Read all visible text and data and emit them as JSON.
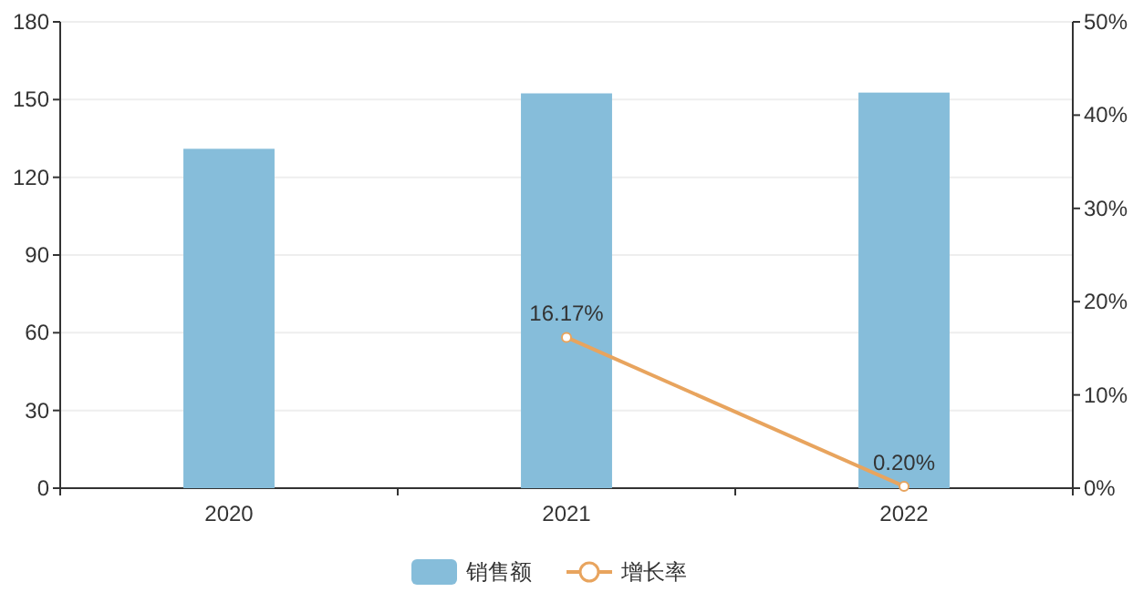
{
  "chart_data": {
    "type": "bar",
    "categories": [
      "2020",
      "2021",
      "2022"
    ],
    "series": [
      {
        "name": "销售额",
        "color": "#86bdda",
        "values": [
          131,
          152.4,
          152.7
        ]
      },
      {
        "name": "增长率",
        "type": "line",
        "axis": "y2",
        "color": "#e8a45e",
        "values": [
          null,
          16.17,
          0.2
        ],
        "value_labels": [
          null,
          "16.17%",
          "0.20%"
        ],
        "marker": "circle"
      }
    ],
    "ylim": [
      0,
      180
    ],
    "yticks": [
      0,
      30,
      60,
      90,
      120,
      150,
      180
    ],
    "y2lim": [
      0,
      50
    ],
    "y2ticks": [
      {
        "value": 0,
        "label": "0%"
      },
      {
        "value": 10,
        "label": "10%"
      },
      {
        "value": 20,
        "label": "20%"
      },
      {
        "value": 30,
        "label": "30%"
      },
      {
        "value": 40,
        "label": "40%"
      },
      {
        "value": 50,
        "label": "50%"
      }
    ],
    "grid": "y",
    "legend": "bottom"
  }
}
